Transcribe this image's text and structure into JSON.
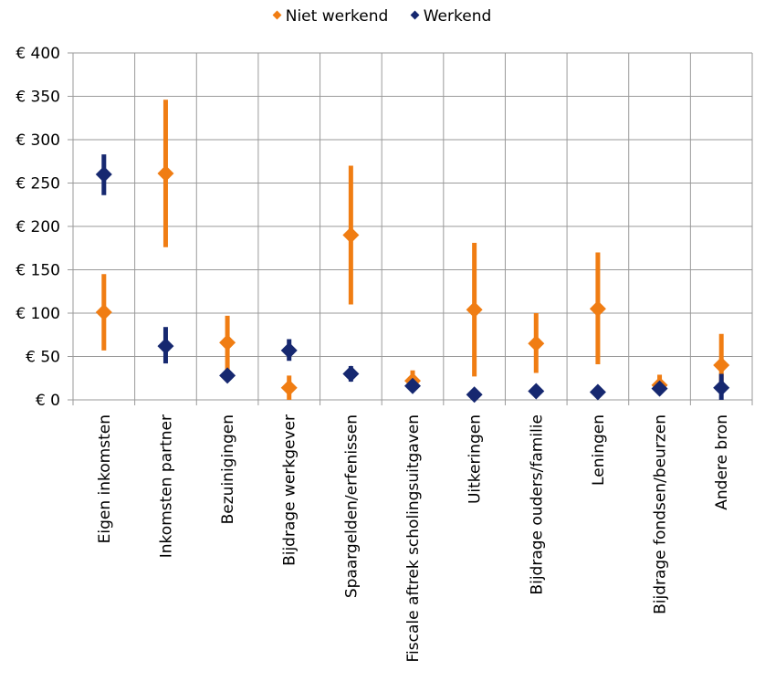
{
  "chart_data": {
    "type": "scatter",
    "title": "",
    "xlabel": "",
    "ylabel": "",
    "ylim": [
      0,
      400
    ],
    "ytick_values": [
      0,
      50,
      100,
      150,
      200,
      250,
      300,
      350,
      400
    ],
    "ytick_labels": [
      "€ 0",
      "€ 50",
      "€ 100",
      "€ 150",
      "€ 200",
      "€ 250",
      "€ 300",
      "€ 350",
      "€ 400"
    ],
    "grid": "vertical and horizontal",
    "legend_position": "top-center",
    "categories": [
      "Eigen inkomsten",
      "Inkomsten partner",
      "Bezuinigingen",
      "Bijdrage werkgever",
      "Spaargelden/erfenissen",
      "Fiscale aftrek scholingsuitgaven",
      "Uitkeringen",
      "Bijdrage ouders/familie",
      "Leningen",
      "Bijdrage fondsen/beurzen",
      "Andere bron"
    ],
    "series": [
      {
        "name": "Niet werkend",
        "color": "#f07d13",
        "values": [
          101,
          261,
          66,
          14,
          190,
          22,
          104,
          65,
          105,
          17,
          40
        ],
        "low": [
          57,
          176,
          30,
          0,
          110,
          14,
          27,
          31,
          41,
          8,
          8
        ],
        "high": [
          145,
          346,
          97,
          28,
          270,
          34,
          181,
          100,
          170,
          29,
          76
        ]
      },
      {
        "name": "Werkend",
        "color": "#162870",
        "values": [
          260,
          62,
          28,
          57,
          30,
          16,
          6,
          10,
          9,
          13,
          14
        ],
        "low": [
          236,
          42,
          22,
          45,
          21,
          10,
          2,
          6,
          5,
          7,
          0
        ],
        "high": [
          283,
          84,
          35,
          70,
          39,
          22,
          10,
          14,
          13,
          19,
          30
        ]
      }
    ]
  }
}
